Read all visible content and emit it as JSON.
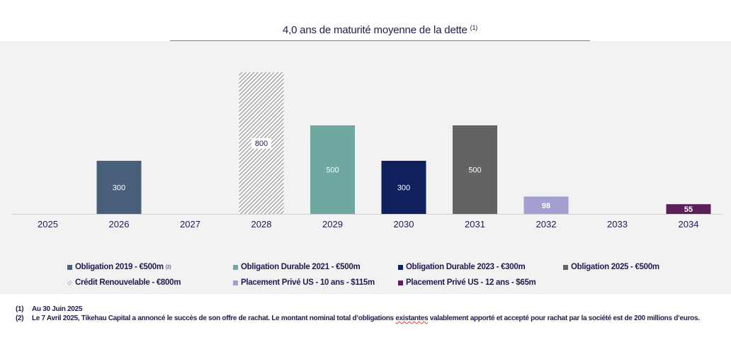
{
  "chart_data": {
    "type": "bar",
    "title": "4,0 ans de maturité moyenne de la dette",
    "title_footnote_ref": "(1)",
    "xlabel": "",
    "ylabel": "",
    "ylim": [
      0,
      800
    ],
    "grid": false,
    "categories": [
      "2025",
      "2026",
      "2027",
      "2028",
      "2029",
      "2030",
      "2031",
      "2032",
      "2033",
      "2034"
    ],
    "bars": [
      {
        "category": "2026",
        "value": 300,
        "label": "300",
        "series": "Obligation 2019 - €500m"
      },
      {
        "category": "2028",
        "value": 800,
        "label": "800",
        "series": "Crédit Renouvelable - €800m"
      },
      {
        "category": "2029",
        "value": 500,
        "label": "500",
        "series": "Obligation Durable 2021 - €500m"
      },
      {
        "category": "2030",
        "value": 300,
        "label": "300",
        "series": "Obligation Durable 2023 - €300m"
      },
      {
        "category": "2031",
        "value": 500,
        "label": "500",
        "series": "Obligation 2025 - €500m"
      },
      {
        "category": "2032",
        "value": 98,
        "label": "98",
        "series": "Placement Privé US - 10 ans - $115m"
      },
      {
        "category": "2034",
        "value": 55,
        "label": "55",
        "series": "Placement Privé US - 12 ans - $65m"
      }
    ],
    "series": [
      {
        "name": "Obligation 2019 - €500m",
        "footnote_ref": "(2)",
        "color": "#48607a",
        "pattern": "solid",
        "label_color": "#ffffff"
      },
      {
        "name": "Obligation Durable 2021 - €500m",
        "color": "#6fa8a0",
        "pattern": "solid",
        "label_color": "#ffffff"
      },
      {
        "name": "Obligation Durable 2023 - €300m",
        "color": "#0f205c",
        "pattern": "solid",
        "label_color": "#ffffff"
      },
      {
        "name": "Obligation 2025 - €500m",
        "color": "#636363",
        "pattern": "solid",
        "label_color": "#ffffff"
      },
      {
        "name": "Crédit Renouvelable - €800m",
        "color": "#b0b0b0",
        "pattern": "hatch",
        "label_color": "#1f1d4e"
      },
      {
        "name": "Placement Privé US - 10 ans - $115m",
        "color": "#a39fd1",
        "pattern": "solid",
        "label_color": "#ffffff"
      },
      {
        "name": "Placement Privé US - 12 ans - $65m",
        "color": "#5c1f5a",
        "pattern": "solid",
        "label_color": "#ffffff"
      }
    ],
    "legend_position": "bottom"
  },
  "title": {
    "text": "4,0 ans de maturité moyenne de la dette",
    "footnote_ref": "(1)"
  },
  "footnotes": [
    {
      "num": "(1)",
      "text": "Au 30 Juin 2025"
    },
    {
      "num": "(2)",
      "text_before": "Le 7 Avril 2025, Tikehau Capital a annoncé le succès de son offre de rachat. Le montant nominal total d’obligations ",
      "flagged_word": "existantes",
      "text_after": " valablement apporté et accepté pour rachat par la société est de 200 millions d’euros."
    }
  ]
}
